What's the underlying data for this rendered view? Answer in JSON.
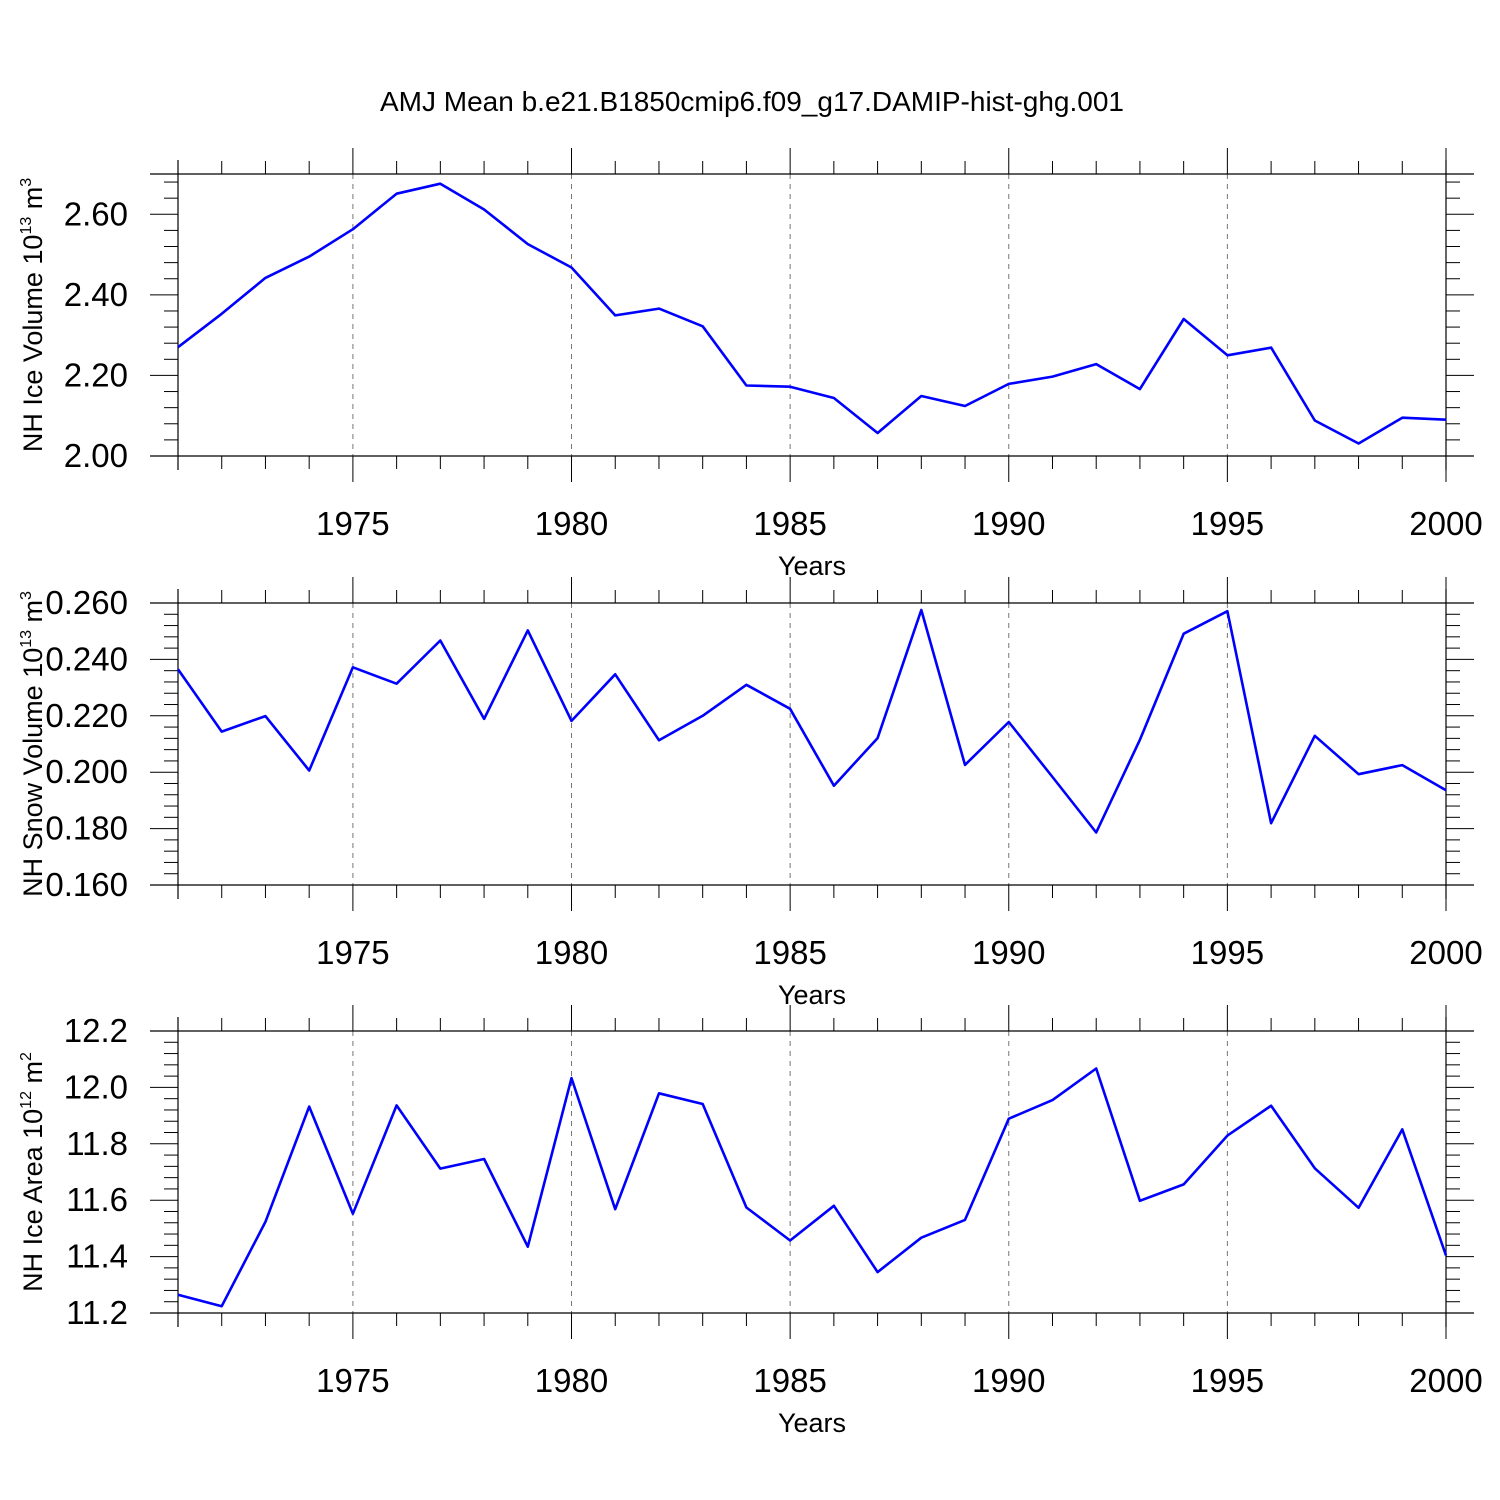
{
  "title": "AMJ Mean b.e21.B1850cmip6.f09_g17.DAMIP-hist-ghg.001",
  "line_color": "#0000ff",
  "chart_data": [
    {
      "type": "line",
      "ylabel": {
        "main": "NH Ice Volume 10",
        "exp": "13",
        "unit": " m",
        "unit_exp": "3"
      },
      "xlabel": "Years",
      "xlim": [
        1971,
        2000
      ],
      "ylim": [
        2.0,
        2.7
      ],
      "xticks": [
        1975,
        1980,
        1985,
        1990,
        1995,
        2000
      ],
      "yticks": [
        "2.00",
        "2.20",
        "2.40",
        "2.60"
      ],
      "x": [
        1971,
        1972,
        1973,
        1974,
        1975,
        1976,
        1977,
        1978,
        1979,
        1980,
        1981,
        1982,
        1983,
        1984,
        1985,
        1986,
        1987,
        1988,
        1989,
        1990,
        1991,
        1992,
        1993,
        1994,
        1995,
        1996,
        1997,
        1998,
        1999,
        2000
      ],
      "values": [
        2.27,
        2.353,
        2.442,
        2.495,
        2.563,
        2.651,
        2.676,
        2.612,
        2.526,
        2.468,
        2.349,
        2.366,
        2.322,
        2.175,
        2.172,
        2.144,
        2.057,
        2.149,
        2.124,
        2.179,
        2.197,
        2.228,
        2.166,
        2.34,
        2.25,
        2.269,
        2.088,
        2.031,
        2.095,
        2.09
      ]
    },
    {
      "type": "line",
      "ylabel": {
        "main": "NH Snow Volume 10",
        "exp": "13",
        "unit": " m",
        "unit_exp": "3"
      },
      "xlabel": "Years",
      "xlim": [
        1971,
        2000
      ],
      "ylim": [
        0.16,
        0.26
      ],
      "xticks": [
        1975,
        1980,
        1985,
        1990,
        1995,
        2000
      ],
      "yticks": [
        "0.160",
        "0.180",
        "0.200",
        "0.220",
        "0.240",
        "0.260"
      ],
      "x": [
        1971,
        1972,
        1973,
        1974,
        1975,
        1976,
        1977,
        1978,
        1979,
        1980,
        1981,
        1982,
        1983,
        1984,
        1985,
        1986,
        1987,
        1988,
        1989,
        1990,
        1991,
        1992,
        1993,
        1994,
        1995,
        1996,
        1997,
        1998,
        1999,
        2000
      ],
      "values": [
        0.2365,
        0.2144,
        0.2199,
        0.2006,
        0.2372,
        0.2314,
        0.2467,
        0.2189,
        0.2503,
        0.2182,
        0.2347,
        0.2113,
        0.22,
        0.231,
        0.2225,
        0.1952,
        0.2121,
        0.2575,
        0.2026,
        0.2178,
        0.1983,
        0.1786,
        0.2115,
        0.2491,
        0.2571,
        0.1819,
        0.2129,
        0.1993,
        0.2025,
        0.1936
      ]
    },
    {
      "type": "line",
      "ylabel": {
        "main": "NH Ice Area 10",
        "exp": "12",
        "unit": " m",
        "unit_exp": "2"
      },
      "xlabel": "Years",
      "xlim": [
        1971,
        2000
      ],
      "ylim": [
        11.2,
        12.2
      ],
      "xticks": [
        1975,
        1980,
        1985,
        1990,
        1995,
        2000
      ],
      "yticks": [
        "11.2",
        "11.4",
        "11.6",
        "11.8",
        "12.0",
        "12.2"
      ],
      "x": [
        1971,
        1972,
        1973,
        1974,
        1975,
        1976,
        1977,
        1978,
        1979,
        1980,
        1981,
        1982,
        1983,
        1984,
        1985,
        1986,
        1987,
        1988,
        1989,
        1990,
        1991,
        1992,
        1993,
        1994,
        1995,
        1996,
        1997,
        1998,
        1999,
        2000
      ],
      "values": [
        11.265,
        11.224,
        11.523,
        11.932,
        11.552,
        11.936,
        11.712,
        11.746,
        11.435,
        12.033,
        11.568,
        11.979,
        11.941,
        11.574,
        11.457,
        11.58,
        11.345,
        11.467,
        11.53,
        11.889,
        11.955,
        12.067,
        11.598,
        11.656,
        11.829,
        11.935,
        11.713,
        11.573,
        11.851,
        11.404
      ]
    }
  ]
}
